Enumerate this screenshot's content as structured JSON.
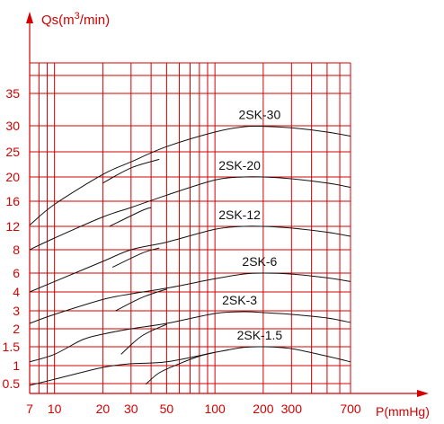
{
  "chart_data": {
    "type": "line",
    "ylabel_prefix": "Qs(m",
    "ylabel_exp": "3",
    "ylabel_suffix": "/min)",
    "xlabel": "P(mmHg)",
    "x_scale": "log",
    "xlim": [
      7,
      700
    ],
    "y_ticks": [
      {
        "label": "0.5",
        "y": 0.5
      },
      {
        "label": "1",
        "y": 1
      },
      {
        "label": "1.5",
        "y": 1.5
      },
      {
        "label": "2",
        "y": 2
      },
      {
        "label": "3",
        "y": 3
      },
      {
        "label": "4",
        "y": 4
      },
      {
        "label": "6",
        "y": 6
      },
      {
        "label": "8",
        "y": 8
      },
      {
        "label": "12",
        "y": 12
      },
      {
        "label": "16",
        "y": 16
      },
      {
        "label": "20",
        "y": 20
      },
      {
        "label": "25",
        "y": 25
      },
      {
        "label": "30",
        "y": 30
      },
      {
        "label": "35",
        "y": 35
      }
    ],
    "x_ticks": [
      {
        "label": "7",
        "x": 7
      },
      {
        "label": "10",
        "x": 10
      },
      {
        "label": "20",
        "x": 20
      },
      {
        "label": "30",
        "x": 30
      },
      {
        "label": "50",
        "x": 50
      },
      {
        "label": "100",
        "x": 100
      },
      {
        "label": "200",
        "x": 200
      },
      {
        "label": "300",
        "x": 300
      },
      {
        "label": "700",
        "x": 700
      }
    ],
    "series": [
      {
        "name": "2SK-1.5",
        "points": [
          [
            7,
            0.45
          ],
          [
            10,
            0.62
          ],
          [
            20,
            0.95
          ],
          [
            30,
            1.05
          ],
          [
            50,
            1.1
          ],
          [
            100,
            1.35
          ],
          [
            150,
            1.48
          ],
          [
            200,
            1.5
          ],
          [
            300,
            1.45
          ],
          [
            500,
            1.25
          ],
          [
            700,
            1.1
          ]
        ],
        "short": [
          [
            37,
            0.48
          ],
          [
            45,
            0.8
          ],
          [
            60,
            1.05
          ],
          [
            80,
            1.25
          ],
          [
            100,
            1.35
          ]
        ]
      },
      {
        "name": "2SK-3",
        "points": [
          [
            7,
            1.1
          ],
          [
            10,
            1.3
          ],
          [
            15,
            1.7
          ],
          [
            20,
            1.85
          ],
          [
            30,
            2.0
          ],
          [
            50,
            2.3
          ],
          [
            100,
            2.85
          ],
          [
            150,
            2.95
          ],
          [
            200,
            2.9
          ],
          [
            300,
            2.8
          ],
          [
            500,
            2.6
          ],
          [
            700,
            2.35
          ]
        ],
        "short": [
          [
            26,
            1.3
          ],
          [
            35,
            1.8
          ],
          [
            50,
            2.25
          ]
        ]
      },
      {
        "name": "2SK-6",
        "points": [
          [
            7,
            2.3
          ],
          [
            10,
            2.8
          ],
          [
            20,
            3.6
          ],
          [
            30,
            3.9
          ],
          [
            50,
            4.4
          ],
          [
            100,
            5.4
          ],
          [
            150,
            5.9
          ],
          [
            200,
            6.0
          ],
          [
            300,
            5.9
          ],
          [
            500,
            5.5
          ],
          [
            700,
            5.1
          ]
        ],
        "short": [
          [
            24,
            3.0
          ],
          [
            35,
            3.7
          ],
          [
            50,
            4.3
          ]
        ]
      },
      {
        "name": "2SK-12",
        "points": [
          [
            7,
            4.0
          ],
          [
            10,
            5.1
          ],
          [
            20,
            7.0
          ],
          [
            30,
            8.0
          ],
          [
            50,
            9.3
          ],
          [
            100,
            11.5
          ],
          [
            150,
            12.0
          ],
          [
            200,
            12.0
          ],
          [
            300,
            11.7
          ],
          [
            500,
            11.0
          ],
          [
            700,
            10.3
          ]
        ],
        "short": [
          [
            23,
            6.5
          ],
          [
            35,
            7.7
          ],
          [
            45,
            8.3
          ]
        ]
      },
      {
        "name": "2SK-20",
        "points": [
          [
            7,
            8.0
          ],
          [
            10,
            10.0
          ],
          [
            20,
            13.5
          ],
          [
            30,
            15.0
          ],
          [
            50,
            17.0
          ],
          [
            100,
            19.5
          ],
          [
            150,
            20.0
          ],
          [
            200,
            20.0
          ],
          [
            300,
            19.7
          ],
          [
            500,
            19.0
          ],
          [
            700,
            18.3
          ]
        ],
        "short": [
          [
            22,
            12.0
          ],
          [
            35,
            14.5
          ],
          [
            40,
            15.0
          ]
        ]
      },
      {
        "name": "2SK-30",
        "points": [
          [
            7,
            12.2
          ],
          [
            10,
            15.5
          ],
          [
            20,
            20.5
          ],
          [
            30,
            23.0
          ],
          [
            50,
            26.0
          ],
          [
            100,
            28.8
          ],
          [
            150,
            29.8
          ],
          [
            200,
            29.9
          ],
          [
            300,
            29.6
          ],
          [
            500,
            28.8
          ],
          [
            700,
            28.0
          ]
        ],
        "short": [
          [
            20,
            19.0
          ],
          [
            30,
            21.8
          ],
          [
            45,
            23.5
          ]
        ]
      }
    ]
  }
}
